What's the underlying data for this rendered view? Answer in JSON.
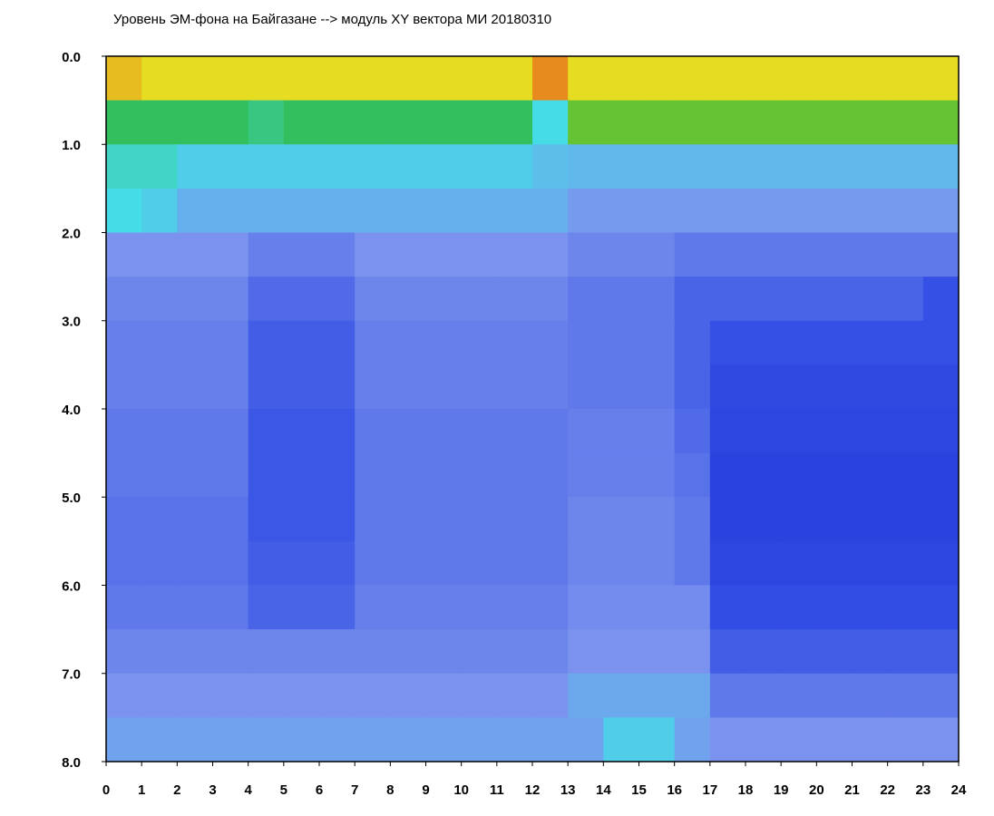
{
  "chart_data": {
    "type": "heatmap",
    "title": "Уровень ЭМ-фона на Байгазане  -->  модуль XY вектора МИ  20180310",
    "xlim": [
      0,
      24
    ],
    "xticks": [
      0,
      1,
      2,
      3,
      4,
      5,
      6,
      7,
      8,
      9,
      10,
      11,
      12,
      13,
      14,
      15,
      16,
      17,
      18,
      19,
      20,
      21,
      22,
      23,
      24
    ],
    "ylim": [
      8,
      0
    ],
    "yticks": [
      {
        "value": 0,
        "label": "0.0"
      },
      {
        "value": 1,
        "label": "1.0"
      },
      {
        "value": 2,
        "label": "2.0"
      },
      {
        "value": 3,
        "label": "3.0"
      },
      {
        "value": 4,
        "label": "4.0"
      },
      {
        "value": 5,
        "label": "5.0"
      },
      {
        "value": 6,
        "label": "6.0"
      },
      {
        "value": 7,
        "label": "7.0"
      },
      {
        "value": 8,
        "label": "8.0"
      }
    ],
    "colors": [
      "#1a2ed6",
      "#3550e4",
      "#7b93ee",
      "#45dce8",
      "#2fb83a",
      "#e6dc22",
      "#e83a1c"
    ],
    "z": [
      [
        5.2,
        5,
        5,
        5,
        5,
        5,
        5,
        5,
        5,
        5,
        5,
        5,
        5.5,
        5,
        5,
        5,
        5,
        5,
        5,
        5,
        5,
        5,
        5,
        5
      ],
      [
        3.8,
        3.8,
        3.8,
        3.8,
        3.6,
        3.8,
        3.8,
        3.8,
        3.8,
        3.8,
        3.8,
        3.8,
        3.0,
        4.3,
        4.3,
        4.3,
        4.3,
        4.3,
        4.3,
        4.3,
        4.3,
        4.3,
        4.3,
        4.3
      ],
      [
        3.2,
        3.2,
        2.8,
        2.8,
        2.8,
        2.8,
        2.8,
        2.8,
        2.8,
        2.8,
        2.8,
        2.8,
        2.6,
        2.5,
        2.5,
        2.5,
        2.5,
        2.5,
        2.5,
        2.5,
        2.5,
        2.5,
        2.5,
        2.5
      ],
      [
        3.0,
        2.8,
        2.4,
        2.4,
        2.4,
        2.4,
        2.4,
        2.4,
        2.4,
        2.4,
        2.4,
        2.4,
        2.4,
        2.1,
        2.1,
        2.1,
        2.1,
        2.1,
        2.1,
        2.1,
        2.1,
        2.1,
        2.1,
        2.1
      ],
      [
        2.0,
        2.0,
        2.0,
        2.0,
        1.7,
        1.7,
        1.7,
        2.0,
        2.0,
        2.0,
        2.0,
        2.0,
        2.0,
        1.8,
        1.8,
        1.8,
        1.6,
        1.6,
        1.6,
        1.6,
        1.6,
        1.6,
        1.6,
        1.6
      ],
      [
        1.8,
        1.8,
        1.8,
        1.8,
        1.4,
        1.4,
        1.4,
        1.8,
        1.8,
        1.8,
        1.8,
        1.8,
        1.8,
        1.6,
        1.6,
        1.6,
        1.3,
        1.3,
        1.3,
        1.3,
        1.3,
        1.3,
        1.3,
        1.0
      ],
      [
        1.7,
        1.7,
        1.7,
        1.7,
        1.2,
        1.2,
        1.2,
        1.7,
        1.7,
        1.7,
        1.7,
        1.7,
        1.7,
        1.6,
        1.6,
        1.6,
        1.3,
        1.0,
        1.0,
        1.0,
        1.0,
        1.0,
        1.0,
        1.0
      ],
      [
        1.7,
        1.7,
        1.7,
        1.7,
        1.2,
        1.2,
        1.2,
        1.7,
        1.7,
        1.7,
        1.7,
        1.7,
        1.7,
        1.6,
        1.6,
        1.6,
        1.3,
        0.8,
        0.8,
        0.8,
        0.8,
        0.8,
        0.8,
        0.8
      ],
      [
        1.6,
        1.6,
        1.6,
        1.6,
        1.1,
        1.1,
        1.1,
        1.6,
        1.6,
        1.6,
        1.6,
        1.6,
        1.6,
        1.7,
        1.7,
        1.7,
        1.4,
        0.7,
        0.7,
        0.7,
        0.7,
        0.7,
        0.7,
        0.7
      ],
      [
        1.6,
        1.6,
        1.6,
        1.6,
        1.1,
        1.1,
        1.1,
        1.6,
        1.6,
        1.6,
        1.6,
        1.6,
        1.6,
        1.7,
        1.7,
        1.7,
        1.5,
        0.6,
        0.6,
        0.6,
        0.6,
        0.6,
        0.6,
        0.6
      ],
      [
        1.5,
        1.5,
        1.5,
        1.5,
        1.1,
        1.1,
        1.1,
        1.6,
        1.6,
        1.6,
        1.6,
        1.6,
        1.6,
        1.8,
        1.8,
        1.8,
        1.6,
        0.6,
        0.6,
        0.6,
        0.6,
        0.6,
        0.6,
        0.6
      ],
      [
        1.5,
        1.5,
        1.5,
        1.5,
        1.2,
        1.2,
        1.2,
        1.6,
        1.6,
        1.6,
        1.6,
        1.6,
        1.6,
        1.8,
        1.8,
        1.8,
        1.6,
        0.7,
        0.7,
        0.7,
        0.7,
        0.7,
        0.7,
        0.7
      ],
      [
        1.6,
        1.6,
        1.6,
        1.6,
        1.3,
        1.3,
        1.3,
        1.7,
        1.7,
        1.7,
        1.7,
        1.7,
        1.7,
        1.9,
        1.9,
        1.9,
        1.9,
        0.9,
        0.9,
        0.9,
        0.9,
        0.9,
        0.9,
        0.9
      ],
      [
        1.8,
        1.8,
        1.8,
        1.8,
        1.8,
        1.8,
        1.8,
        1.8,
        1.8,
        1.8,
        1.8,
        1.8,
        1.8,
        2.0,
        2.0,
        2.0,
        2.0,
        1.2,
        1.2,
        1.2,
        1.2,
        1.2,
        1.2,
        1.2
      ],
      [
        2.0,
        2.0,
        2.0,
        2.0,
        2.0,
        2.0,
        2.0,
        2.0,
        2.0,
        2.0,
        2.0,
        2.0,
        2.0,
        2.3,
        2.3,
        2.3,
        2.3,
        1.6,
        1.6,
        1.6,
        1.6,
        1.6,
        1.6,
        1.6
      ],
      [
        2.2,
        2.2,
        2.2,
        2.2,
        2.2,
        2.2,
        2.2,
        2.2,
        2.2,
        2.2,
        2.2,
        2.2,
        2.2,
        2.2,
        2.8,
        2.8,
        2.2,
        2.0,
        2.0,
        2.0,
        2.0,
        2.0,
        2.0,
        2.0
      ]
    ]
  }
}
